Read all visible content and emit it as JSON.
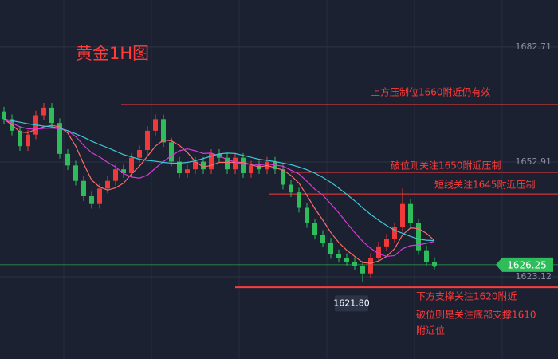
{
  "chart_data": {
    "type": "candlestick",
    "title": "黄金1H图",
    "ylim": [
      1601.8,
      1694.9
    ],
    "yticks": [
      1682.71,
      1652.91,
      1623.12
    ],
    "grid": true,
    "up_color": "#f03a3a",
    "down_color": "#2ebd5a",
    "open": [
      1666,
      1664,
      1661,
      1657,
      1660,
      1665,
      1667,
      1663,
      1655,
      1652,
      1648,
      1644,
      1642,
      1646,
      1648,
      1651,
      1650,
      1654,
      1656,
      1661,
      1664,
      1658,
      1653,
      1650,
      1651,
      1653,
      1651,
      1655,
      1654,
      1651,
      1654,
      1650,
      1652,
      1651,
      1653,
      1651,
      1647,
      1645,
      1641,
      1637,
      1634,
      1632,
      1629,
      1628,
      1627,
      1626,
      1624,
      1628,
      1631,
      1633,
      1636,
      1642,
      1637,
      1630,
      1627
    ],
    "high": [
      1667.2,
      1665.2,
      1662.2,
      1661.2,
      1666.2,
      1668.2,
      1668.2,
      1664.2,
      1656.2,
      1653.2,
      1649.2,
      1645.2,
      1647.2,
      1649.2,
      1652.2,
      1652.2,
      1655.2,
      1657.2,
      1662.2,
      1665.2,
      1665.2,
      1659.2,
      1654.2,
      1652.2,
      1654.2,
      1654.2,
      1656.2,
      1656.2,
      1655.2,
      1655.2,
      1655.2,
      1653.2,
      1653.2,
      1654.2,
      1654.2,
      1652.2,
      1648.2,
      1646.2,
      1642.2,
      1638.2,
      1635.2,
      1633.2,
      1630.2,
      1629.2,
      1628.2,
      1627.2,
      1629.2,
      1632.2,
      1634.2,
      1637.2,
      1646,
      1643.2,
      1638.2,
      1631.2,
      1628.2
    ],
    "low": [
      1662.8,
      1659.8,
      1655.8,
      1655.8,
      1658.8,
      1663.8,
      1661.8,
      1653.8,
      1650.8,
      1646.8,
      1642.8,
      1640.8,
      1640.8,
      1644.8,
      1646.8,
      1648.8,
      1648.8,
      1652.8,
      1654.8,
      1659.8,
      1656.8,
      1651.8,
      1648.8,
      1648.8,
      1649.8,
      1649.8,
      1649.8,
      1652.8,
      1649.8,
      1649.8,
      1648.8,
      1648.8,
      1649.8,
      1649.8,
      1649.8,
      1645.8,
      1643.8,
      1639.8,
      1635.8,
      1632.8,
      1630.8,
      1627.8,
      1626.8,
      1625.8,
      1624.8,
      1621.8,
      1622.8,
      1626.8,
      1629.8,
      1631.8,
      1634.8,
      1635.8,
      1628.8,
      1625.8,
      1625.05
    ],
    "close": [
      1664,
      1661,
      1657,
      1660,
      1665,
      1667,
      1663,
      1655,
      1652,
      1648,
      1644,
      1642,
      1646,
      1648,
      1651,
      1650,
      1654,
      1656,
      1661,
      1664,
      1658,
      1653,
      1650,
      1651,
      1653,
      1651,
      1655,
      1654,
      1651,
      1654,
      1650,
      1652,
      1651,
      1653,
      1651,
      1647,
      1645,
      1641,
      1637,
      1634,
      1632,
      1629,
      1628,
      1627,
      1626,
      1624,
      1628,
      1631,
      1633,
      1636,
      1642,
      1637,
      1630,
      1627,
      1626.25
    ],
    "series": [
      {
        "color": "#ff6b6b",
        "values": [
          1664,
          1662.5,
          1660.7,
          1660.5,
          1661.4,
          1662,
          1662.4,
          1662,
          1660.4,
          1657,
          1652.4,
          1648.2,
          1646.4,
          1645.6,
          1646.2,
          1647.4,
          1649.8,
          1651.8,
          1654.4,
          1657,
          1658.6,
          1658.4,
          1657.2,
          1655.4,
          1653,
          1651.6,
          1652,
          1652.8,
          1652.8,
          1652.8,
          1652.8,
          1652.2,
          1651.6,
          1652,
          1651.4,
          1650.8,
          1649.4,
          1647.4,
          1644.2,
          1640.8,
          1637.8,
          1634.6,
          1632,
          1630,
          1628.4,
          1626.8,
          1626.6,
          1627.2,
          1628.4,
          1630.4,
          1634,
          1635.8,
          1635.6,
          1634.4,
          1632.5
        ]
      },
      {
        "color": "#d63bd6",
        "values": [
          1664,
          1663,
          1662,
          1661.5,
          1661.4,
          1661.6,
          1661.7,
          1661.5,
          1661,
          1659.5,
          1657.2,
          1655.3,
          1654.2,
          1652.8,
          1651.6,
          1649.9,
          1649,
          1648.7,
          1649.5,
          1651.3,
          1653,
          1654.5,
          1655.8,
          1656.3,
          1655.8,
          1655.1,
          1655.2,
          1654.5,
          1653.5,
          1652.9,
          1652.3,
          1652.4,
          1652.1,
          1652.4,
          1652.1,
          1651.8,
          1650.8,
          1649.8,
          1647.9,
          1645.8,
          1644.3,
          1642,
          1639.7,
          1637.1,
          1634.6,
          1632.3,
          1630.5,
          1629.1,
          1628.4,
          1628.6,
          1630.4,
          1631.2,
          1631.4,
          1631.8,
          1632.3
        ]
      },
      {
        "color": "#3cc8d8",
        "values": [
          1664,
          1663.6,
          1663.2,
          1662.8,
          1662.5,
          1662.2,
          1662,
          1661.6,
          1661,
          1660.2,
          1659.3,
          1658.3,
          1657.4,
          1656.6,
          1655.7,
          1654.8,
          1654.2,
          1653.6,
          1653.3,
          1653.1,
          1652.8,
          1652.6,
          1652.6,
          1652.8,
          1653.2,
          1653.8,
          1654.4,
          1655,
          1655.2,
          1655.1,
          1654.6,
          1654.1,
          1653.6,
          1653.3,
          1653,
          1652.6,
          1652.2,
          1651.6,
          1650.9,
          1650,
          1648.9,
          1647.6,
          1646.1,
          1644.5,
          1642.8,
          1641,
          1639.3,
          1637.8,
          1636.4,
          1635.2,
          1634.4,
          1633.6,
          1632.9,
          1632.6,
          1632.5
        ]
      }
    ],
    "levels": [
      {
        "value": 1667.8,
        "label": "上方压制位1660附近仍有效"
      },
      {
        "value": 1650.2,
        "label": "破位则关注1650附近压制"
      },
      {
        "value": 1644.6,
        "label": "短线关注1645附近压制"
      },
      {
        "value": 1620.4,
        "label": "下方支撑关注1620附近"
      }
    ],
    "support_note": [
      "破位则是关注底部支撑1610",
      "附近位"
    ],
    "current_price": 1626.25,
    "low_marker": 1621.8,
    "low_marker_label": "1621.80"
  }
}
